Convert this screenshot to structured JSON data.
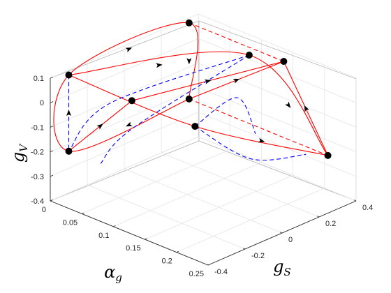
{
  "chart_data": {
    "type": "line",
    "projection": "3d",
    "title": "",
    "axes": {
      "x": {
        "label": "α",
        "label_sub": "g",
        "ticks": [
          "0",
          "0.05",
          "0.1",
          "0.15",
          "0.2",
          "0.25"
        ],
        "range": [
          0,
          0.25
        ]
      },
      "y": {
        "label": "g",
        "label_sub": "S",
        "ticks": [
          "-0.4",
          "-0.2",
          "0",
          "0.2",
          "0.4"
        ],
        "range": [
          -0.4,
          0.4
        ]
      },
      "z": {
        "label": "g",
        "label_sub": "V",
        "ticks": [
          "0.1",
          "0",
          "-0.1",
          "-0.2",
          "-0.3",
          "-0.4"
        ],
        "range": [
          -0.4,
          0.1
        ]
      }
    },
    "grid": true,
    "colors": {
      "solid_series": "#ff0000",
      "dashed_series": "#0000ff",
      "points": "#000000",
      "arrows": "#000000"
    },
    "points": [
      [
        0.22,
        0.35,
        -0.23
      ],
      [
        0.0,
        0.35,
        -0.23
      ],
      [
        0.0,
        -0.3,
        -0.23
      ],
      [
        0.0,
        -0.3,
        0.08
      ],
      [
        0.0,
        0.35,
        0.08
      ],
      [
        0.15,
        0.35,
        0.08
      ],
      [
        0.1,
        -0.3,
        0.08
      ],
      [
        0.11,
        0.3,
        0.08
      ],
      [
        0.2,
        -0.3,
        0.08
      ]
    ],
    "series": [
      {
        "style": "solid",
        "color": "#ff0000",
        "points": [
          [
            0.0,
            0.35,
            -0.23
          ],
          [
            0.0,
            -0.3,
            -0.23
          ],
          [
            0.0,
            -0.3,
            0.08
          ],
          [
            0.0,
            0.35,
            0.08
          ],
          [
            0.0,
            0.35,
            -0.23
          ]
        ]
      },
      {
        "style": "solid",
        "color": "#ff0000",
        "points": [
          [
            0.0,
            0.35,
            -0.23
          ],
          [
            0.15,
            0.35,
            0.08
          ]
        ]
      },
      {
        "style": "solid",
        "color": "#ff0000",
        "points": [
          [
            0.0,
            -0.3,
            0.08
          ],
          [
            0.2,
            -0.3,
            0.08
          ],
          [
            0.22,
            0.35,
            -0.23
          ]
        ]
      },
      {
        "style": "solid",
        "color": "#ff0000",
        "points": [
          [
            0.22,
            0.35,
            -0.23
          ],
          [
            0.15,
            0.35,
            0.08
          ]
        ]
      },
      {
        "style": "solid",
        "color": "#ff0000",
        "points": [
          [
            0.0,
            -0.3,
            0.08
          ],
          [
            0.11,
            0.3,
            0.08
          ],
          [
            0.22,
            0.35,
            -0.23
          ]
        ]
      },
      {
        "style": "solid",
        "color": "#ff0000",
        "points": [
          [
            0.0,
            -0.3,
            -0.23
          ],
          [
            0.1,
            -0.3,
            0.08
          ]
        ]
      },
      {
        "style": "solid",
        "color": "#ff0000",
        "points": [
          [
            0.1,
            -0.3,
            0.08
          ],
          [
            0.15,
            0.35,
            0.08
          ]
        ]
      },
      {
        "style": "dashed",
        "color": "#ff0000",
        "points": [
          [
            0.0,
            0.35,
            -0.23
          ],
          [
            0.22,
            0.35,
            -0.23
          ]
        ]
      },
      {
        "style": "dashed",
        "color": "#ff0000",
        "points": [
          [
            0.0,
            0.35,
            0.08
          ],
          [
            0.15,
            0.35,
            0.08
          ]
        ]
      },
      {
        "style": "dashed",
        "color": "#0000ff",
        "points": [
          [
            0.0,
            -0.3,
            0.08
          ],
          [
            0.0,
            -0.3,
            -0.23
          ]
        ]
      },
      {
        "style": "dashed",
        "color": "#0000ff",
        "points": [
          [
            0.11,
            0.3,
            0.08
          ],
          [
            0.05,
            -0.25,
            0.0
          ],
          [
            0.0,
            -0.3,
            -0.23
          ]
        ]
      },
      {
        "style": "dashed",
        "color": "#0000ff",
        "points": [
          [
            0.11,
            0.3,
            0.08
          ],
          [
            0.07,
            -0.2,
            -0.1
          ],
          [
            0.05,
            -0.3,
            -0.23
          ]
        ]
      },
      {
        "style": "dashed",
        "color": "#0000ff",
        "points": [
          [
            0.2,
            -0.3,
            0.08
          ],
          [
            0.12,
            0.2,
            -0.05
          ],
          [
            0.12,
            0.3,
            -0.23
          ]
        ]
      },
      {
        "style": "dashed",
        "color": "#0000ff",
        "points": [
          [
            0.2,
            -0.3,
            0.08
          ],
          [
            0.2,
            0.0,
            -0.15
          ],
          [
            0.2,
            0.3,
            -0.23
          ]
        ]
      }
    ]
  }
}
